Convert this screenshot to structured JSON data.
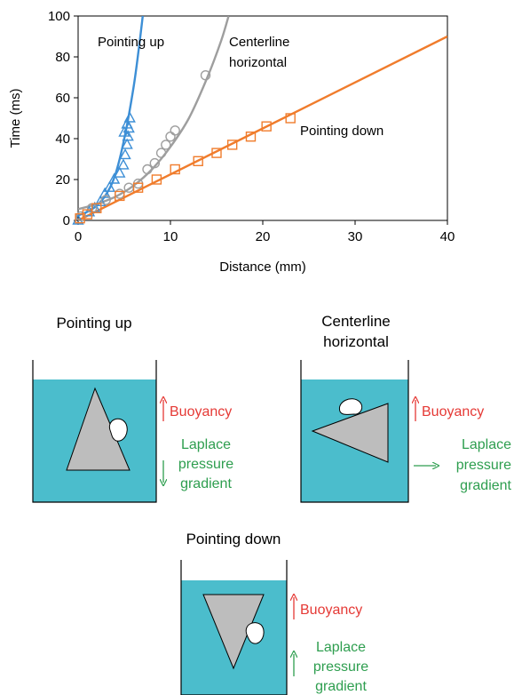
{
  "chart_data": {
    "type": "scatter",
    "xlabel": "Distance (mm)",
    "ylabel": "Time (ms)",
    "xlim": [
      0,
      40
    ],
    "ylim": [
      0,
      100
    ],
    "xticks": [
      0,
      10,
      20,
      30,
      40
    ],
    "yticks": [
      0,
      20,
      40,
      60,
      80,
      100
    ],
    "grid": false,
    "series": [
      {
        "name": "Pointing up",
        "color": "#3d8fd6",
        "marker": "triangle",
        "points": [
          [
            0,
            0
          ],
          [
            1.2,
            4
          ],
          [
            1.8,
            6
          ],
          [
            2.4,
            9
          ],
          [
            2.9,
            13
          ],
          [
            3.4,
            16
          ],
          [
            3.9,
            20
          ],
          [
            4.5,
            23
          ],
          [
            4.9,
            27
          ],
          [
            5.1,
            32
          ],
          [
            5.3,
            37
          ],
          [
            5.4,
            41
          ],
          [
            5.5,
            45
          ],
          [
            5.6,
            50
          ],
          [
            5.3,
            47
          ],
          [
            5.0,
            43
          ]
        ],
        "fit": [
          [
            0,
            2.5
          ],
          [
            1,
            4.2
          ],
          [
            2,
            7.2
          ],
          [
            3,
            12.5
          ],
          [
            4,
            22
          ],
          [
            5,
            40
          ],
          [
            6,
            65
          ],
          [
            6.6,
            85
          ],
          [
            7.0,
            100
          ]
        ]
      },
      {
        "name": "Centerline horizontal",
        "color": "#9e9e9e",
        "marker": "circle",
        "points": [
          [
            0.3,
            2
          ],
          [
            1.5,
            6
          ],
          [
            3,
            10
          ],
          [
            4.5,
            13
          ],
          [
            5.5,
            16
          ],
          [
            6.5,
            18
          ],
          [
            7.5,
            25
          ],
          [
            8.3,
            28
          ],
          [
            9,
            33
          ],
          [
            9.5,
            37
          ],
          [
            10,
            41
          ],
          [
            10.5,
            44
          ],
          [
            13.8,
            71
          ]
        ],
        "fit": [
          [
            0,
            5.5
          ],
          [
            2,
            8
          ],
          [
            4,
            11.5
          ],
          [
            6,
            17
          ],
          [
            8,
            25
          ],
          [
            10,
            36
          ],
          [
            12,
            50
          ],
          [
            14,
            70
          ],
          [
            15.5,
            88
          ],
          [
            16.3,
            100
          ]
        ]
      },
      {
        "name": "Pointing down",
        "color": "#f07c2c",
        "marker": "square",
        "points": [
          [
            0.2,
            1
          ],
          [
            1,
            3
          ],
          [
            2,
            6
          ],
          [
            4.5,
            12
          ],
          [
            6.5,
            16
          ],
          [
            8.5,
            20
          ],
          [
            10.5,
            25
          ],
          [
            13,
            29
          ],
          [
            15,
            33
          ],
          [
            16.7,
            37
          ],
          [
            18.7,
            41
          ],
          [
            20.4,
            46
          ],
          [
            23,
            50
          ]
        ],
        "fit": [
          [
            0,
            0
          ],
          [
            40,
            90
          ]
        ]
      }
    ],
    "annotations": [
      {
        "text": "Pointing up",
        "color": "#000000"
      },
      {
        "text": "Centerline",
        "color": "#000000"
      },
      {
        "text": "horizontal",
        "color": "#000000"
      },
      {
        "text": "Pointing down",
        "color": "#000000"
      }
    ]
  },
  "diagrams": {
    "water_color": "#4bbdcc",
    "solid_color": "#bdbdbd",
    "buoyancy_color": "#e53935",
    "laplace_color": "#2e9e4f",
    "panels": [
      {
        "title_lines": [
          "Pointing up"
        ],
        "buoyancy": "Buoyancy",
        "laplace_lines": [
          "Laplace",
          "pressure",
          "gradient"
        ]
      },
      {
        "title_lines": [
          "Centerline",
          "horizontal"
        ],
        "buoyancy": "Buoyancy",
        "laplace_lines": [
          "Laplace",
          "pressure",
          "gradient"
        ]
      },
      {
        "title_lines": [
          "Pointing down"
        ],
        "buoyancy": "Buoyancy",
        "laplace_lines": [
          "Laplace",
          "pressure",
          "gradient"
        ]
      }
    ]
  }
}
